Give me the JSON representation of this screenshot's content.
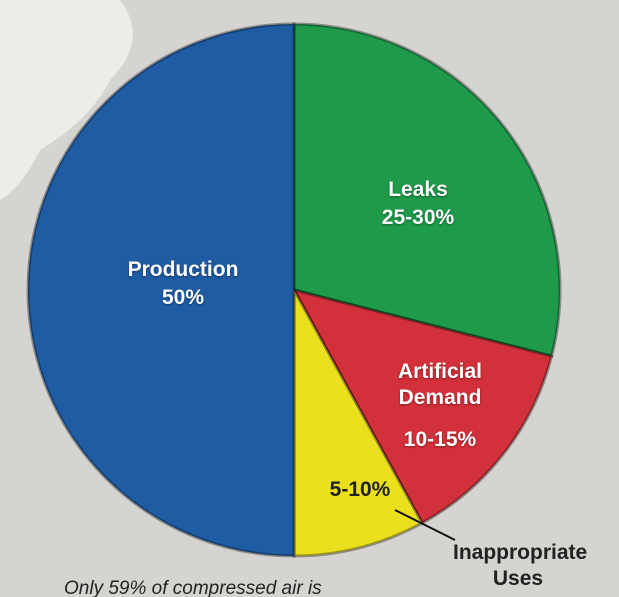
{
  "chart_data": {
    "type": "pie",
    "categories": [
      "Leaks",
      "Artificial Demand",
      "Inappropriate Uses",
      "Production"
    ],
    "values": [
      29,
      13,
      8,
      50
    ],
    "value_labels": [
      "25-30%",
      "10-15%",
      "5-10%",
      "50%"
    ],
    "colors": [
      "#1e9a4a",
      "#d2303a",
      "#ebe01e",
      "#1f5ca4"
    ],
    "note": "Only 59% of compressed air is"
  }
}
